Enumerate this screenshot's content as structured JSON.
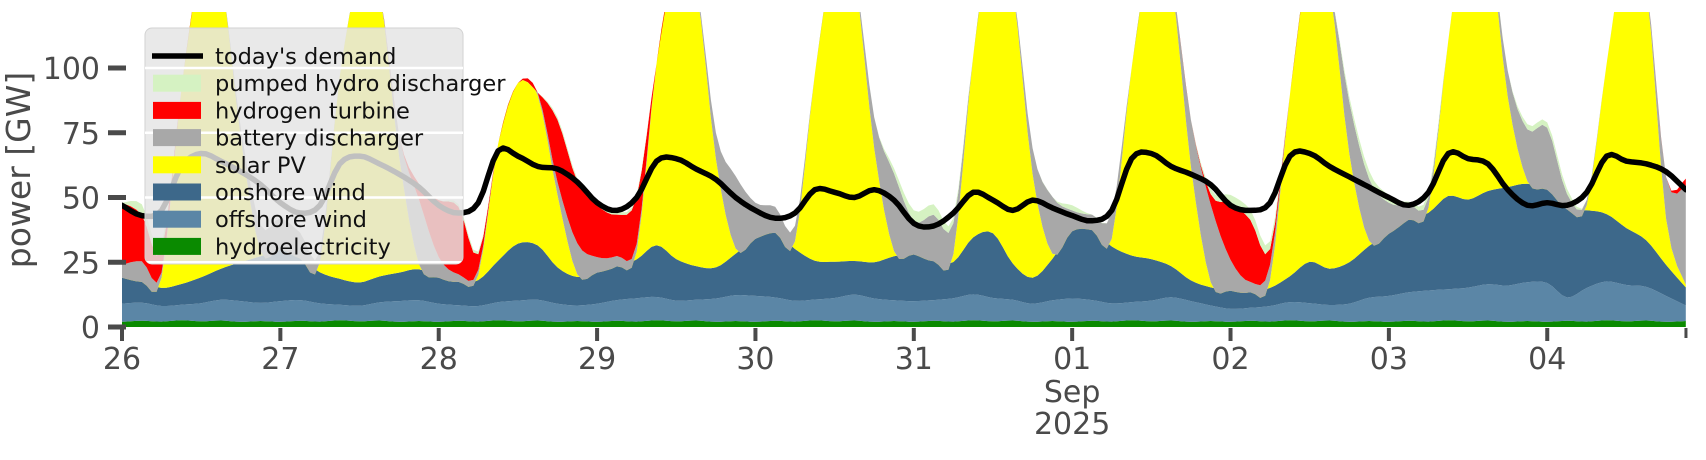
{
  "figure": {
    "ylabel": "power [GW]",
    "month_label": "Sep",
    "year_label": "2025",
    "yticks": [
      0,
      25,
      50,
      75,
      100
    ],
    "xticks": [
      "26",
      "27",
      "28",
      "29",
      "30",
      "31",
      "01",
      "02",
      "03",
      "04"
    ],
    "tick_color": "#4a4a4a",
    "grid_color": "#ffffff",
    "legend": {
      "background": "rgba(229,229,229,0.84)",
      "border": "#d2d2d2",
      "entries": [
        {
          "key": "demand",
          "label": "today's demand",
          "color": "#000000",
          "swatch": "line"
        },
        {
          "key": "pumped",
          "label": "pumped hydro discharger",
          "color": "#d5f2c2",
          "swatch": "patch"
        },
        {
          "key": "hydrogen",
          "label": "hydrogen turbine",
          "color": "#ff0000",
          "swatch": "patch"
        },
        {
          "key": "battery",
          "label": "battery discharger",
          "color": "#a8a8a8",
          "swatch": "patch"
        },
        {
          "key": "solar",
          "label": "solar PV",
          "color": "#ffff00",
          "swatch": "patch"
        },
        {
          "key": "onshore",
          "label": "onshore wind",
          "color": "#3d688a",
          "swatch": "patch"
        },
        {
          "key": "offshore",
          "label": "offshore wind",
          "color": "#5b86a6",
          "swatch": "patch"
        },
        {
          "key": "hydro",
          "label": "hydroelectricity",
          "color": "#0a8a00",
          "swatch": "patch"
        }
      ]
    }
  },
  "chart_data": {
    "type": "area",
    "stacked": true,
    "title": "",
    "xlabel": "Sep 2025",
    "ylabel": "power [GW]",
    "ylim": [
      0,
      121.6
    ],
    "grid": false,
    "legend_position": "upper left",
    "time": {
      "start": "2025-08-26 00:00",
      "step_hours": 3,
      "points": 80,
      "day_tick_labels": [
        "26",
        "27",
        "28",
        "29",
        "30",
        "31",
        "01",
        "02",
        "03",
        "04"
      ]
    },
    "units": "GW",
    "stack_order_bottom_to_top": [
      "hydroelectricity",
      "offshore wind",
      "onshore wind",
      "solar PV",
      "battery discharger",
      "hydrogen turbine",
      "pumped hydro discharger"
    ],
    "series": [
      {
        "key": "hydro",
        "name": "hydroelectricity",
        "color": "#0a8a00",
        "values": [
          2,
          2.4,
          2.1,
          2.6,
          2.2,
          2.5,
          2,
          2.3,
          2,
          2.4,
          2.1,
          2.6,
          2.2,
          2.5,
          2,
          2.3,
          2,
          2.4,
          2.1,
          2.6,
          2.2,
          2.5,
          2,
          2.3,
          2,
          2.4,
          2.1,
          2.6,
          2.2,
          2.5,
          2,
          2.3,
          2,
          2.4,
          2.1,
          2.6,
          2.2,
          2.5,
          2,
          2.3,
          2,
          2.4,
          2.1,
          2.6,
          2.2,
          2.5,
          2,
          2.3,
          2,
          2.4,
          2.1,
          2.6,
          2.2,
          2.5,
          2,
          2.3,
          2,
          2.4,
          2.1,
          2.6,
          2.2,
          2.5,
          2,
          2.3,
          2,
          2.4,
          2.1,
          2.6,
          2.2,
          2.5,
          2,
          2.3,
          2,
          2.4,
          2.1,
          2.6,
          2.2,
          2.5,
          2,
          2.3
        ]
      },
      {
        "key": "offshore",
        "name": "offshore wind",
        "color": "#5b86a6",
        "values": [
          7,
          7,
          6,
          6,
          7,
          8,
          8,
          7,
          8,
          8,
          7,
          6,
          6,
          7,
          8,
          8,
          7,
          6,
          6,
          7,
          8,
          8,
          7,
          6,
          7,
          8,
          9,
          9,
          8,
          8,
          9,
          10,
          10,
          9,
          8,
          8,
          9,
          10,
          9,
          8,
          8,
          8,
          9,
          10,
          9,
          8,
          7,
          8,
          9,
          8,
          7,
          7,
          8,
          9,
          8,
          6,
          5,
          5,
          6,
          7,
          7,
          6,
          7,
          9,
          10,
          11,
          12,
          12,
          13,
          14,
          14,
          15,
          15,
          9,
          13,
          15,
          14,
          13,
          10,
          6
        ]
      },
      {
        "key": "onshore",
        "name": "onshore wind",
        "color": "#3d688a",
        "values": [
          10,
          8,
          7,
          8,
          10,
          12,
          15,
          18,
          20,
          16,
          12,
          10,
          9,
          10,
          11,
          12,
          10,
          9,
          10,
          16,
          22,
          21,
          14,
          11,
          12,
          13,
          15,
          20,
          16,
          13,
          12,
          16,
          22,
          25,
          20,
          15,
          14,
          13,
          14,
          17,
          18,
          15,
          14,
          22,
          25,
          14,
          10,
          16,
          26,
          27,
          22,
          18,
          16,
          12,
          8,
          7,
          7,
          6,
          7,
          10,
          16,
          14,
          16,
          20,
          24,
          28,
          30,
          36,
          34,
          36,
          38,
          38,
          36,
          34,
          30,
          26,
          22,
          18,
          12,
          7
        ]
      },
      {
        "key": "solar",
        "name": "solar PV",
        "color": "#ffff00",
        "values": [
          0,
          0,
          4,
          75,
          120,
          112,
          48,
          2,
          0,
          0,
          4,
          78,
          118,
          110,
          45,
          2,
          0,
          0,
          2,
          45,
          62,
          58,
          28,
          1,
          0,
          0,
          3,
          70,
          115,
          108,
          42,
          2,
          0,
          0,
          3,
          72,
          118,
          110,
          44,
          2,
          0,
          0,
          3,
          70,
          115,
          106,
          40,
          2,
          0,
          0,
          3,
          72,
          118,
          110,
          44,
          2,
          0,
          0,
          3,
          70,
          116,
          108,
          42,
          2,
          0,
          0,
          2,
          60,
          110,
          100,
          35,
          1,
          0,
          0,
          2,
          58,
          108,
          98,
          18,
          1
        ]
      },
      {
        "key": "battery",
        "name": "battery discharger",
        "color": "#a8a8a8",
        "values": [
          5,
          8,
          2,
          0,
          0,
          0,
          4,
          10,
          12,
          10,
          4,
          0,
          0,
          0,
          8,
          25,
          8,
          3,
          2,
          0,
          0,
          1,
          5,
          12,
          6,
          4,
          3,
          0,
          0,
          1,
          10,
          28,
          14,
          10,
          6,
          0,
          0,
          1,
          12,
          30,
          13,
          18,
          12,
          0,
          0,
          1,
          10,
          22,
          8,
          6,
          10,
          0,
          0,
          1,
          18,
          30,
          12,
          4,
          6,
          0,
          0,
          1,
          20,
          24,
          12,
          6,
          4,
          0,
          0,
          1,
          10,
          20,
          24,
          6,
          2,
          0,
          0,
          1,
          16,
          38
        ]
      },
      {
        "key": "hydrogen",
        "name": "hydrogen turbine",
        "color": "#ff0000",
        "values": [
          24,
          18,
          8,
          0,
          0,
          0,
          0,
          0,
          0,
          0,
          0,
          0,
          0,
          0,
          0,
          6,
          22,
          26,
          6,
          0,
          0,
          0,
          24,
          24,
          20,
          16,
          18,
          0,
          0,
          0,
          0,
          0,
          0,
          0,
          0,
          0,
          0,
          0,
          0,
          0,
          0,
          0,
          0,
          0,
          0,
          0,
          0,
          0,
          0,
          0,
          0,
          0,
          0,
          0,
          0,
          4,
          22,
          24,
          6,
          0,
          0,
          0,
          0,
          0,
          0,
          0,
          0,
          0,
          0,
          0,
          0,
          0,
          0,
          0,
          0,
          0,
          0,
          0,
          0,
          3
        ]
      },
      {
        "key": "pumped",
        "name": "pumped hydro discharger",
        "color": "#d5f2c2",
        "values": [
          0,
          4,
          3,
          0,
          0,
          0,
          0,
          0,
          0,
          0,
          0,
          0,
          0,
          0,
          0,
          0,
          0,
          1,
          1,
          0,
          0,
          0,
          1,
          1,
          1,
          1,
          1,
          0,
          0,
          0,
          0,
          0,
          0,
          0,
          0,
          0,
          0,
          0,
          0,
          2,
          4,
          4,
          2,
          0,
          0,
          0,
          0,
          0,
          2,
          0,
          0,
          0,
          0,
          0,
          0,
          2,
          3,
          4,
          3,
          0,
          0,
          0,
          2,
          3,
          3,
          1,
          2,
          0,
          0,
          0,
          0,
          2,
          2,
          2,
          0,
          0,
          0,
          0,
          0,
          0
        ]
      }
    ],
    "demand_line": {
      "key": "demand",
      "name": "today's demand",
      "color": "#000000",
      "values": [
        47,
        43,
        45,
        62,
        67,
        64,
        60,
        55,
        48,
        44,
        47,
        63,
        66,
        63,
        59,
        54,
        47,
        44,
        48,
        68,
        66,
        62,
        61,
        56,
        48,
        45,
        50,
        64,
        65,
        61,
        57,
        50,
        45,
        42,
        44,
        53,
        52,
        50,
        53,
        49,
        40,
        39,
        44,
        52,
        49,
        45,
        49,
        46,
        43,
        41,
        45,
        65,
        67,
        62,
        59,
        55,
        47,
        45,
        48,
        66,
        67,
        62,
        58,
        54,
        50,
        47,
        52,
        67,
        65,
        63,
        53,
        47,
        48,
        47,
        52,
        66,
        64,
        63,
        60,
        53
      ]
    }
  }
}
